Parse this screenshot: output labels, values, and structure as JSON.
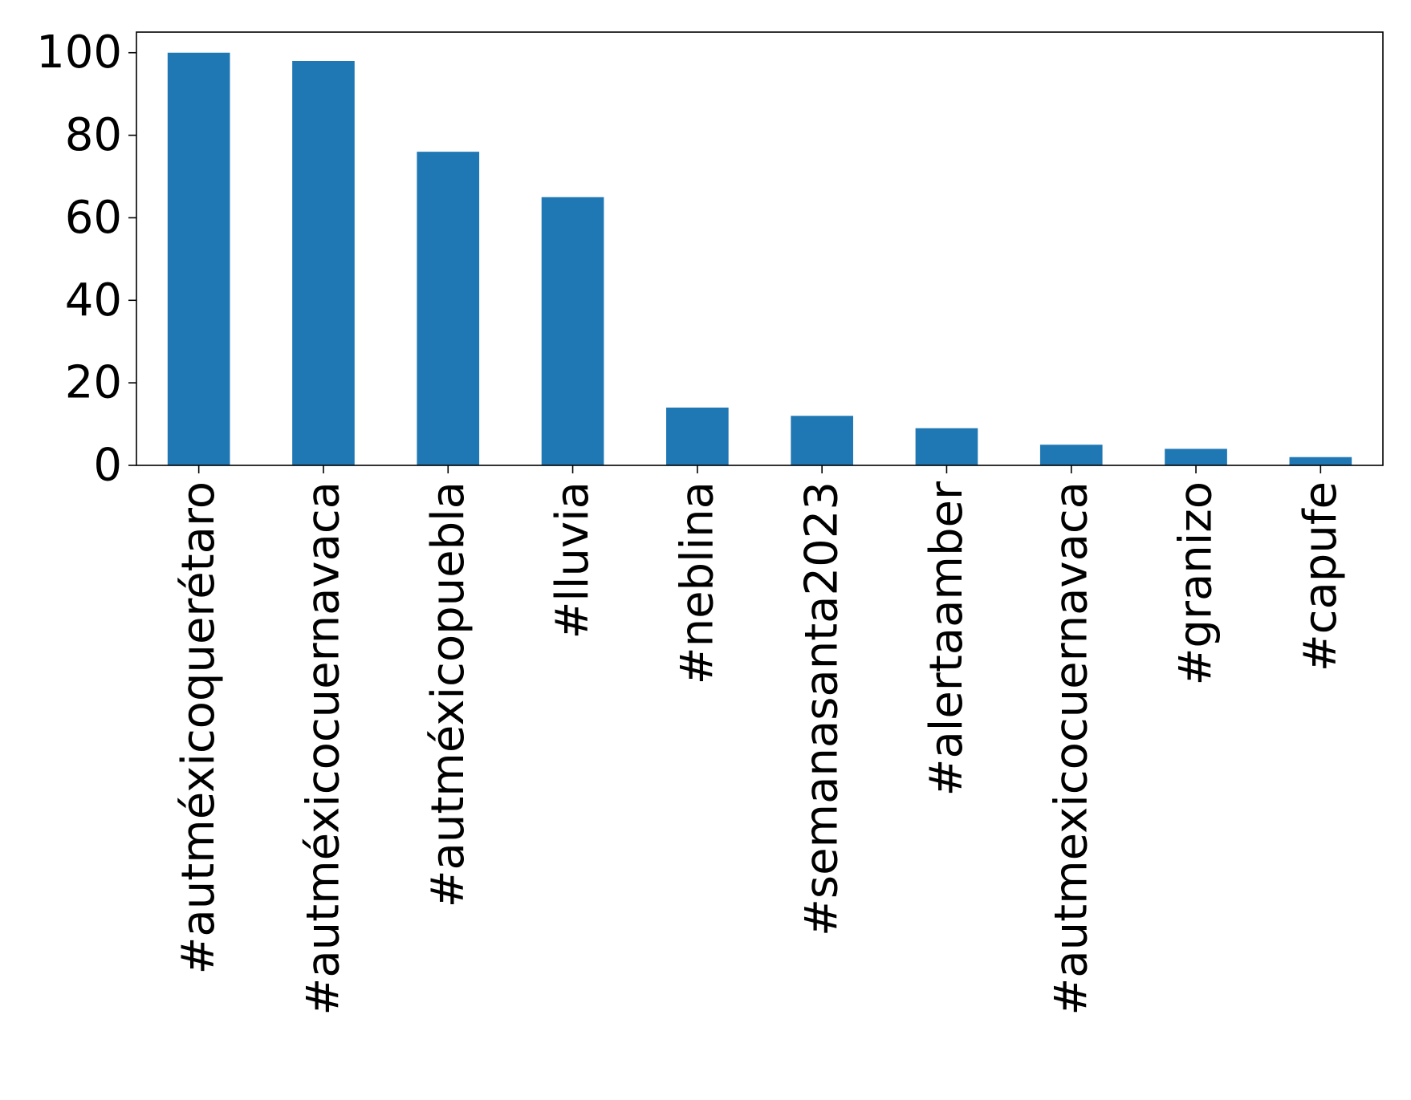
{
  "chart_data": {
    "type": "bar",
    "title": "",
    "xlabel": "",
    "ylabel": "",
    "categories": [
      "#autméxicoquerétaro",
      "#autméxicocuernavaca",
      "#autméxicopuebla",
      "#lluvia",
      "#neblina",
      "#semanasanta2023",
      "#alertaamber",
      "#autmexicocuernavaca",
      "#granizo",
      "#capufe"
    ],
    "values": [
      100,
      98,
      76,
      65,
      14,
      12,
      9,
      5,
      4,
      2
    ],
    "ylim": [
      0,
      105
    ],
    "yticks": [
      0,
      20,
      40,
      60,
      80,
      100
    ],
    "ytick_labels": [
      "0",
      "20",
      "40",
      "60",
      "80",
      "100"
    ],
    "bar_color": "#1f77b4",
    "grid": false,
    "legend": "none",
    "x_tick_rotation": "vertical"
  }
}
